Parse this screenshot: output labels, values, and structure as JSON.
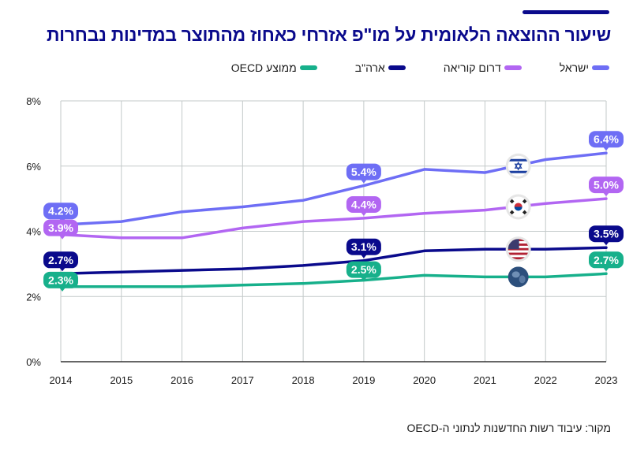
{
  "header": {
    "title": "שיעור ההוצאה הלאומית על מו\"פ אזרחי כאחוז מהתוצר במדינות נבחרות"
  },
  "legend": [
    {
      "label": "ישראל",
      "color": "#6e6ef5"
    },
    {
      "label": "דרום קוריאה",
      "color": "#b266f2"
    },
    {
      "label": "ארה\"ב",
      "color": "#0a0a8c"
    },
    {
      "label": "ממוצע OECD",
      "color": "#17b08b"
    }
  ],
  "footer": {
    "source": "מקור: עיבוד רשות החדשנות לנתוני ה-OECD"
  },
  "chart_data": {
    "type": "line",
    "title": "שיעור ההוצאה הלאומית על מו\"פ אזרחי כאחוז מהתוצר במדינות נבחרות",
    "xlabel": "",
    "ylabel": "",
    "x": [
      "2014",
      "2015",
      "2016",
      "2017",
      "2018",
      "2019",
      "2020",
      "2021",
      "2022",
      "2023"
    ],
    "ylim": [
      0,
      8
    ],
    "yticks": [
      0,
      2,
      4,
      6,
      8
    ],
    "ytick_labels": [
      "0%",
      "2%",
      "4%",
      "6%",
      "8%"
    ],
    "grid": true,
    "legend_position": "top",
    "series": [
      {
        "name": "ישראל",
        "color": "#6e6ef5",
        "flag": "israel-flag",
        "values": [
          4.2,
          4.3,
          4.6,
          4.75,
          4.95,
          5.4,
          5.9,
          5.8,
          6.2,
          6.4
        ],
        "labels": [
          {
            "index": 0,
            "text": "4.2%"
          },
          {
            "index": 5,
            "text": "5.4%"
          },
          {
            "index": 9,
            "text": "6.4%"
          }
        ]
      },
      {
        "name": "דרום קוריאה",
        "color": "#b266f2",
        "flag": "south-korea-flag",
        "values": [
          3.9,
          3.8,
          3.8,
          4.1,
          4.3,
          4.4,
          4.55,
          4.65,
          4.85,
          5.0
        ],
        "labels": [
          {
            "index": 0,
            "text": "3.9%"
          },
          {
            "index": 5,
            "text": "4.4%"
          },
          {
            "index": 9,
            "text": "5.0%"
          }
        ]
      },
      {
        "name": "ארה\"ב",
        "color": "#0a0a8c",
        "flag": "usa-flag",
        "values": [
          2.7,
          2.75,
          2.8,
          2.85,
          2.95,
          3.1,
          3.4,
          3.45,
          3.45,
          3.5
        ],
        "labels": [
          {
            "index": 0,
            "text": "2.7%"
          },
          {
            "index": 5,
            "text": "3.1%"
          },
          {
            "index": 9,
            "text": "3.5%"
          }
        ]
      },
      {
        "name": "ממוצע OECD",
        "color": "#17b08b",
        "flag": "globe",
        "values": [
          2.3,
          2.3,
          2.3,
          2.35,
          2.4,
          2.5,
          2.65,
          2.6,
          2.6,
          2.7
        ],
        "labels": [
          {
            "index": 0,
            "text": "2.3%"
          },
          {
            "index": 5,
            "text": "2.5%"
          },
          {
            "index": 9,
            "text": "2.7%"
          }
        ]
      }
    ]
  }
}
